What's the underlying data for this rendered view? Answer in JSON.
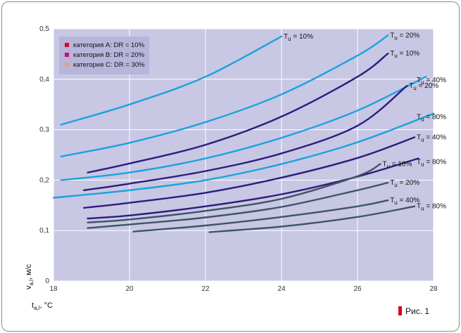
{
  "colors": {
    "plot_bg": "#c8c7e4",
    "grid": "#ffffff",
    "legend_bg": "#b7b5d9",
    "cat_a": "#c8102e",
    "cat_b": "#c2127a",
    "cat_c": "#e6a084",
    "figure_marker": "#d0021b"
  },
  "figure_label": "Рис. 1",
  "chart_data": {
    "type": "line",
    "title": "",
    "xlabel_main": "t",
    "xlabel_sub": "a,l",
    "xlabel_unit": ", °C",
    "ylabel_main": "v",
    "ylabel_sub": "a,l",
    "ylabel_unit": ", м/с",
    "xlim": [
      18,
      28
    ],
    "ylim": [
      0,
      0.5
    ],
    "xticks": [
      "18",
      "20",
      "22",
      "24",
      "26",
      "28"
    ],
    "yticks": [
      "0",
      "0,1",
      "0,2",
      "0,3",
      "0,4",
      "0,5"
    ],
    "xtick_values": [
      18,
      20,
      22,
      24,
      26,
      28
    ],
    "ytick_values": [
      0,
      0.1,
      0.2,
      0.3,
      0.4,
      0.5
    ],
    "grid": true,
    "legend": [
      {
        "name": "категория A: DR = 10%",
        "color_key": "cat_a"
      },
      {
        "name": "категория B: DR = 20%",
        "color_key": "cat_b"
      },
      {
        "name": "категория C: DR = 30%",
        "color_key": "cat_c"
      }
    ],
    "series": [
      {
        "name": "A, Tu = 10%",
        "category": "A",
        "color": "#1aa3dc",
        "x": [
          18.2,
          20,
          22,
          24
        ],
        "y": [
          0.31,
          0.35,
          0.405,
          0.485
        ],
        "label_tu": "10%",
        "label_at": "end"
      },
      {
        "name": "A, Tu = 20%",
        "category": "A",
        "color": "#1aa3dc",
        "x": [
          18.2,
          20,
          22,
          24,
          26,
          26.8
        ],
        "y": [
          0.247,
          0.274,
          0.315,
          0.37,
          0.447,
          0.487
        ],
        "label_tu": "20%",
        "label_at": "end"
      },
      {
        "name": "A, Tu = 40%",
        "category": "A",
        "color": "#1aa3dc",
        "x": [
          18.2,
          20,
          22,
          24,
          26,
          27.8
        ],
        "y": [
          0.2,
          0.215,
          0.243,
          0.284,
          0.338,
          0.405
        ],
        "label_tu": "40%",
        "label_at": "end"
      },
      {
        "name": "A, Tu = 80%",
        "category": "A",
        "color": "#1aa3dc",
        "x": [
          18,
          20,
          22,
          24,
          26,
          28
        ],
        "y": [
          0.165,
          0.18,
          0.2,
          0.232,
          0.275,
          0.332
        ],
        "label_tu": "80%",
        "label_at": "end"
      },
      {
        "name": "B, Tu = 10%",
        "category": "B",
        "color": "#2e1b7e",
        "x": [
          18.9,
          20,
          22,
          24,
          26,
          26.8
        ],
        "y": [
          0.215,
          0.233,
          0.27,
          0.326,
          0.405,
          0.451
        ],
        "label_tu": "10%",
        "label_at": "end"
      },
      {
        "name": "B, Tu = 20%",
        "category": "B",
        "color": "#2e1b7e",
        "x": [
          18.8,
          20,
          22,
          24,
          26,
          27.3
        ],
        "y": [
          0.18,
          0.193,
          0.218,
          0.253,
          0.308,
          0.387
        ],
        "label_tu": "20%",
        "label_at": "end"
      },
      {
        "name": "B, Tu = 40%",
        "category": "B",
        "color": "#2e1b7e",
        "x": [
          18.8,
          20,
          22,
          24,
          26,
          27.5
        ],
        "y": [
          0.145,
          0.155,
          0.175,
          0.205,
          0.244,
          0.285
        ],
        "label_tu": "40%",
        "label_at": "end"
      },
      {
        "name": "B, Tu = 80%",
        "category": "B",
        "color": "#2e1b7e",
        "x": [
          18.9,
          20,
          22,
          24,
          26,
          27.6
        ],
        "y": [
          0.124,
          0.13,
          0.148,
          0.172,
          0.207,
          0.243
        ],
        "label_tu": "80%",
        "label_at": "end"
      },
      {
        "name": "C, Tu = 10%",
        "category": "C",
        "color": "#3d5566",
        "x": [
          18.9,
          20,
          22,
          24,
          26,
          26.6
        ],
        "y": [
          0.116,
          0.122,
          0.139,
          0.163,
          0.208,
          0.232
        ],
        "label_tu": "10%",
        "label_at": "end"
      },
      {
        "name": "C, Tu = 20%",
        "category": "C",
        "color": "#3d5566",
        "x": [
          18.9,
          20,
          22,
          24,
          26,
          26.8
        ],
        "y": [
          0.105,
          0.112,
          0.126,
          0.147,
          0.18,
          0.195
        ],
        "label_tu": "20%",
        "label_at": "end"
      },
      {
        "name": "C, Tu = 40%",
        "category": "C",
        "color": "#3d5566",
        "x": [
          20.1,
          22,
          24,
          26,
          26.8
        ],
        "y": [
          0.098,
          0.11,
          0.127,
          0.148,
          0.16
        ],
        "label_tu": "40%",
        "label_at": "end"
      },
      {
        "name": "C, Tu = 80%",
        "category": "C",
        "color": "#3d5566",
        "x": [
          22.1,
          24,
          26,
          27.5
        ],
        "y": [
          0.097,
          0.108,
          0.127,
          0.148
        ],
        "label_tu": "80%",
        "label_at": "end"
      }
    ]
  }
}
